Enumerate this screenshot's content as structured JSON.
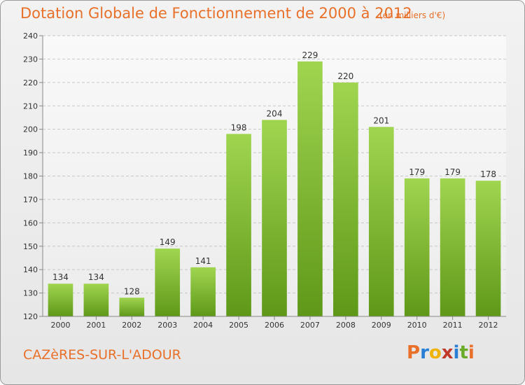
{
  "header": {
    "title": "Dotation Globale de Fonctionnement de 2000 à 2012",
    "unit": "(en milliers d'€)"
  },
  "footer": {
    "commune": "CAZèRES-SUR-L'ADOUR",
    "brand": [
      "P",
      "r",
      "o",
      "x",
      "i",
      "t",
      "i"
    ],
    "brand_colors": [
      "#e8702a",
      "#2a7fd4",
      "#f0b400",
      "#c0392b",
      "#2a7fd4",
      "#6aab2a",
      "#e8702a"
    ]
  },
  "colors": {
    "bar_top": "#a0d550",
    "bar_bottom": "#5f9818",
    "grid": "#c8c8c8",
    "axis": "#888888",
    "accent": "#e8702a"
  },
  "chart_data": {
    "type": "bar",
    "title": "Dotation Globale de Fonctionnement de 2000 à 2012",
    "subtitle": "(en milliers d'€)",
    "xlabel": "",
    "ylabel": "",
    "categories": [
      "2000",
      "2001",
      "2002",
      "2003",
      "2004",
      "2005",
      "2006",
      "2007",
      "2008",
      "2009",
      "2010",
      "2011",
      "2012"
    ],
    "values": [
      134,
      134,
      128,
      149,
      141,
      198,
      204,
      229,
      220,
      201,
      179,
      179,
      178
    ],
    "ylim": [
      120,
      240
    ],
    "yticks": [
      120,
      130,
      140,
      150,
      160,
      170,
      180,
      190,
      200,
      210,
      220,
      230,
      240
    ],
    "grid": true,
    "legend": "none"
  }
}
